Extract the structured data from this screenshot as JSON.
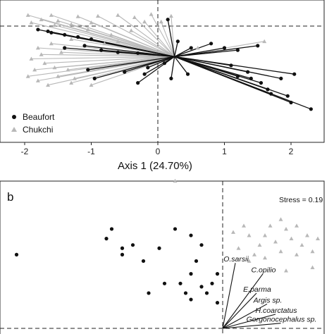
{
  "chart_data": [
    {
      "type": "scatter",
      "panel_label": "",
      "xlabel": "Axis 1 (24.70%)",
      "ylabel": "",
      "x_ticks": [
        "-2",
        "-1",
        "0",
        "1",
        "2"
      ],
      "xlim": [
        -2.3,
        2.6
      ],
      "ylim": [
        -1.3,
        1.0
      ],
      "grid": false,
      "reference_lines": {
        "x": 0,
        "y": 0.7
      },
      "centroid": [
        0.25,
        0.0
      ],
      "legend": {
        "placement": "bottom-left",
        "entries": [
          {
            "label": "Beaufort",
            "marker": "circle",
            "color": "#111111"
          },
          {
            "label": "Chukchi",
            "marker": "triangle",
            "color": "#b8b8b8"
          }
        ]
      },
      "series": [
        {
          "name": "Beaufort",
          "color": "#111111",
          "points": [
            [
              -1.8,
              0.62
            ],
            [
              -1.6,
              0.55
            ],
            [
              -1.4,
              0.5
            ],
            [
              -1.2,
              0.45
            ],
            [
              -1.65,
              0.58
            ],
            [
              -1.0,
              0.4
            ],
            [
              -1.4,
              0.2
            ],
            [
              -1.1,
              0.25
            ],
            [
              -0.85,
              0.15
            ],
            [
              -0.6,
              0.1
            ],
            [
              -0.3,
              0.08
            ],
            [
              -1.05,
              -0.3
            ],
            [
              -0.95,
              -0.5
            ],
            [
              -0.5,
              -0.35
            ],
            [
              -0.2,
              -0.4
            ],
            [
              -0.3,
              -0.6
            ],
            [
              -0.15,
              -0.25
            ],
            [
              0.1,
              -0.15
            ],
            [
              0.15,
              0.85
            ],
            [
              0.8,
              0.3
            ],
            [
              1.0,
              0.2
            ],
            [
              1.2,
              0.15
            ],
            [
              1.5,
              0.25
            ],
            [
              1.1,
              -0.2
            ],
            [
              1.35,
              -0.35
            ],
            [
              1.2,
              -0.45
            ],
            [
              1.4,
              -0.5
            ],
            [
              1.55,
              -0.6
            ],
            [
              1.65,
              -0.75
            ],
            [
              1.7,
              -0.85
            ],
            [
              1.85,
              -0.5
            ],
            [
              2.05,
              -0.4
            ],
            [
              1.95,
              -0.9
            ],
            [
              2.0,
              -1.05
            ],
            [
              2.3,
              -1.2
            ],
            [
              0.45,
              -0.4
            ],
            [
              0.2,
              -0.5
            ],
            [
              0.5,
              0.2
            ],
            [
              0.3,
              0.35
            ]
          ]
        },
        {
          "name": "Chukchi",
          "color": "#b8b8b8",
          "points": [
            [
              -1.95,
              0.95
            ],
            [
              -1.6,
              0.95
            ],
            [
              -1.2,
              0.92
            ],
            [
              -0.9,
              0.93
            ],
            [
              -0.6,
              0.95
            ],
            [
              -0.35,
              0.9
            ],
            [
              -0.1,
              0.97
            ],
            [
              0.2,
              0.93
            ],
            [
              -0.2,
              0.8
            ],
            [
              0.05,
              0.8
            ],
            [
              -1.75,
              0.85
            ],
            [
              -1.5,
              0.82
            ],
            [
              -1.3,
              0.74
            ],
            [
              -1.55,
              0.72
            ],
            [
              -1.9,
              0.78
            ],
            [
              -1.3,
              0.4
            ],
            [
              -1.6,
              0.3
            ],
            [
              -1.8,
              0.2
            ],
            [
              -1.45,
              0.1
            ],
            [
              -1.75,
              0.05
            ],
            [
              -1.9,
              -0.05
            ],
            [
              -1.7,
              -0.15
            ],
            [
              -1.85,
              -0.3
            ],
            [
              -1.95,
              -0.45
            ],
            [
              -1.8,
              -0.55
            ],
            [
              -1.65,
              -0.65
            ],
            [
              -1.5,
              -0.45
            ],
            [
              -1.35,
              -0.3
            ],
            [
              -1.25,
              -0.5
            ],
            [
              -1.55,
              -0.25
            ],
            [
              -1.3,
              -0.6
            ],
            [
              -1.0,
              -0.65
            ],
            [
              -0.8,
              0.3
            ],
            [
              -0.7,
              0.5
            ],
            [
              -0.6,
              0.35
            ],
            [
              -1.05,
              0.62
            ],
            [
              -1.0,
              0.78
            ],
            [
              -0.4,
              0.6
            ],
            [
              0.6,
              0.2
            ],
            [
              1.6,
              0.35
            ]
          ]
        }
      ]
    },
    {
      "type": "scatter",
      "panel_label": "b",
      "annotation": "Stress = 0.19",
      "xlabel": "",
      "ylabel": "",
      "xlim": [
        -2.0,
        1.0
      ],
      "ylim": [
        -1.0,
        1.4
      ],
      "grid": false,
      "reference_lines": {
        "x": 0,
        "y": -1.0
      },
      "series": [
        {
          "name": "Beaufort",
          "color": "#111111",
          "points": [
            [
              -1.95,
              0.15
            ],
            [
              -1.1,
              0.4
            ],
            [
              -1.05,
              0.55
            ],
            [
              -0.95,
              0.25
            ],
            [
              -0.95,
              0.15
            ],
            [
              -0.85,
              0.3
            ],
            [
              -0.75,
              0.05
            ],
            [
              -0.7,
              -0.45
            ],
            [
              -0.6,
              0.25
            ],
            [
              -0.55,
              -0.3
            ],
            [
              -0.45,
              0.55
            ],
            [
              -0.4,
              -0.3
            ],
            [
              -0.35,
              -0.45
            ],
            [
              -0.3,
              -0.55
            ],
            [
              -0.3,
              -0.15
            ],
            [
              -0.25,
              0.05
            ],
            [
              -0.2,
              -0.35
            ],
            [
              -0.15,
              -0.45
            ],
            [
              -0.1,
              -0.3
            ],
            [
              -0.05,
              -0.6
            ],
            [
              -0.2,
              0.3
            ],
            [
              -0.05,
              -0.15
            ],
            [
              -0.3,
              0.45
            ]
          ]
        },
        {
          "name": "Chukchi",
          "color": "#b8b8b8",
          "points": [
            [
              -0.45,
              1.3
            ],
            [
              0.1,
              0.5
            ],
            [
              0.2,
              0.6
            ],
            [
              0.25,
              0.45
            ],
            [
              0.35,
              0.3
            ],
            [
              0.4,
              0.45
            ],
            [
              0.45,
              0.6
            ],
            [
              0.5,
              0.35
            ],
            [
              0.55,
              0.2
            ],
            [
              0.6,
              0.55
            ],
            [
              0.65,
              0.4
            ],
            [
              0.7,
              0.6
            ],
            [
              0.75,
              0.3
            ],
            [
              0.8,
              0.45
            ],
            [
              0.85,
              0.2
            ],
            [
              0.9,
              0.4
            ],
            [
              0.3,
              0.15
            ],
            [
              0.15,
              0.25
            ],
            [
              0.55,
              0.7
            ],
            [
              0.7,
              0.15
            ],
            [
              0.4,
              0.1
            ],
            [
              0.85,
              -0.05
            ],
            [
              0.25,
              0.05
            ],
            [
              0.6,
              -0.1
            ]
          ]
        }
      ],
      "biplot": {
        "origin": [
          0.0,
          -1.0
        ],
        "species": [
          {
            "label": "O.sarsii",
            "x": 0.12,
            "y": 0.02
          },
          {
            "label": "C.opilio",
            "x": 0.38,
            "y": -0.15
          },
          {
            "label": "E.parma",
            "x": 0.32,
            "y": -0.45
          },
          {
            "label": "Argis sp.",
            "x": 0.42,
            "y": -0.62
          },
          {
            "label": "H.coarctatus",
            "x": 0.5,
            "y": -0.78
          },
          {
            "label": "Gorgonocephalus sp.",
            "x": 0.55,
            "y": -0.92
          }
        ]
      }
    }
  ]
}
